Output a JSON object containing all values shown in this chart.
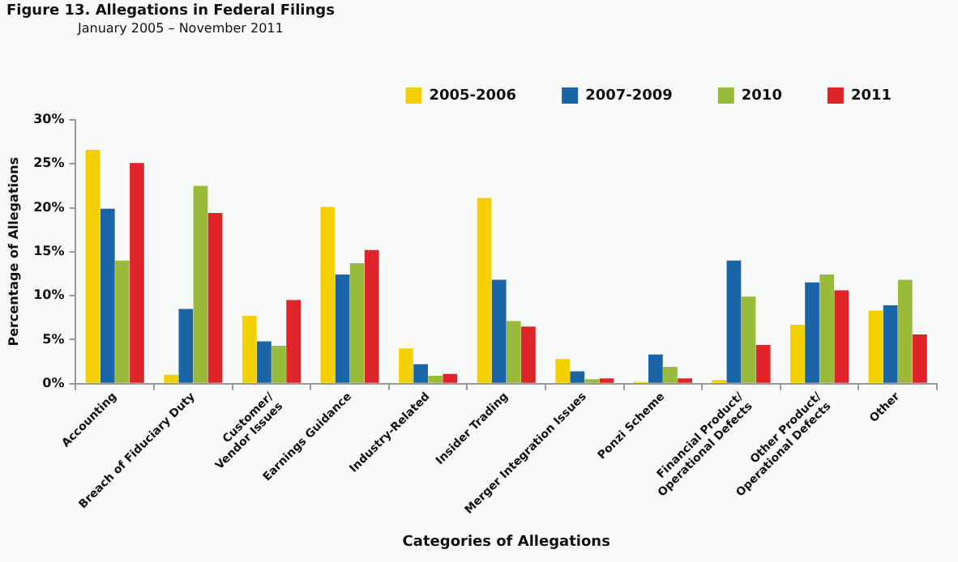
{
  "chart_data": {
    "type": "bar",
    "title": "Figure 13. Allegations in Federal Filings",
    "subtitle": "January 2005 – November 2011",
    "xlabel": "Categories of Allegations",
    "ylabel": "Percentage of Allegations",
    "categories": [
      "Accounting",
      "Breach of Fiduciary Duty",
      "Customer/\nVendor Issues",
      "Earnings Guidance",
      "Industry-Related",
      "Insider Trading",
      "Merger Integration Issues",
      "Ponzi Scheme",
      "Financial Product/\nOperational Defects",
      "Other Product/\nOperational Defects",
      "Other"
    ],
    "series": [
      {
        "name": "2005-2006",
        "color": "#f5d000",
        "values": [
          26.6,
          1.0,
          7.7,
          20.1,
          4.0,
          21.1,
          2.8,
          0.2,
          0.4,
          6.7,
          8.3
        ]
      },
      {
        "name": "2007-2009",
        "color": "#1a64a8",
        "values": [
          19.9,
          8.5,
          4.8,
          12.4,
          2.2,
          11.8,
          1.4,
          3.3,
          14.0,
          11.5,
          8.9
        ]
      },
      {
        "name": "2010",
        "color": "#9aba3a",
        "values": [
          14.0,
          22.5,
          4.3,
          13.7,
          0.9,
          7.1,
          0.5,
          1.9,
          9.9,
          12.4,
          11.8
        ]
      },
      {
        "name": "2011",
        "color": "#e0252a",
        "values": [
          25.1,
          19.4,
          9.5,
          15.2,
          1.1,
          6.5,
          0.6,
          0.6,
          4.4,
          10.6,
          5.6
        ]
      }
    ],
    "ylim": [
      0,
      30
    ],
    "yticks": [
      {
        "value": 0,
        "label": "0%"
      },
      {
        "value": 5,
        "label": "5%"
      },
      {
        "value": 10,
        "label": "10%"
      },
      {
        "value": 15,
        "label": "15%"
      },
      {
        "value": 20,
        "label": "20%"
      },
      {
        "value": 25,
        "label": "25%"
      },
      {
        "value": 30,
        "label": "30%"
      }
    ],
    "grid": false,
    "legend": "top right"
  }
}
